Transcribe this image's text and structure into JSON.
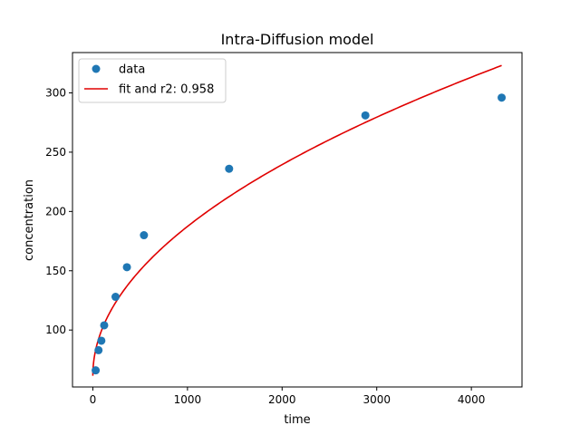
{
  "chart_data": {
    "type": "scatter",
    "title": "Intra-Diffusion model",
    "xlabel": "time",
    "ylabel": "concentration",
    "xlim": [
      -215,
      4535
    ],
    "ylim": [
      52,
      334
    ],
    "x_ticks": [
      0,
      1000,
      2000,
      3000,
      4000
    ],
    "y_ticks": [
      100,
      150,
      200,
      250,
      300
    ],
    "grid": false,
    "legend_position": "top-left",
    "colors": {
      "data": "#1f77b4",
      "fit": "#e00000"
    },
    "series": [
      {
        "name": "data",
        "kind": "points",
        "x": [
          30,
          60,
          90,
          120,
          240,
          360,
          540,
          1440,
          2880,
          4320
        ],
        "y": [
          66,
          83,
          91,
          104,
          128,
          153,
          180,
          236,
          281,
          296
        ]
      },
      {
        "name": "fit and r2: 0.958",
        "kind": "line",
        "model": "intraparticle diffusion: y = kid * sqrt(t) + C",
        "params": {
          "kid": 3.98,
          "C": 61.5
        },
        "x_range": [
          0,
          4320
        ]
      }
    ]
  }
}
